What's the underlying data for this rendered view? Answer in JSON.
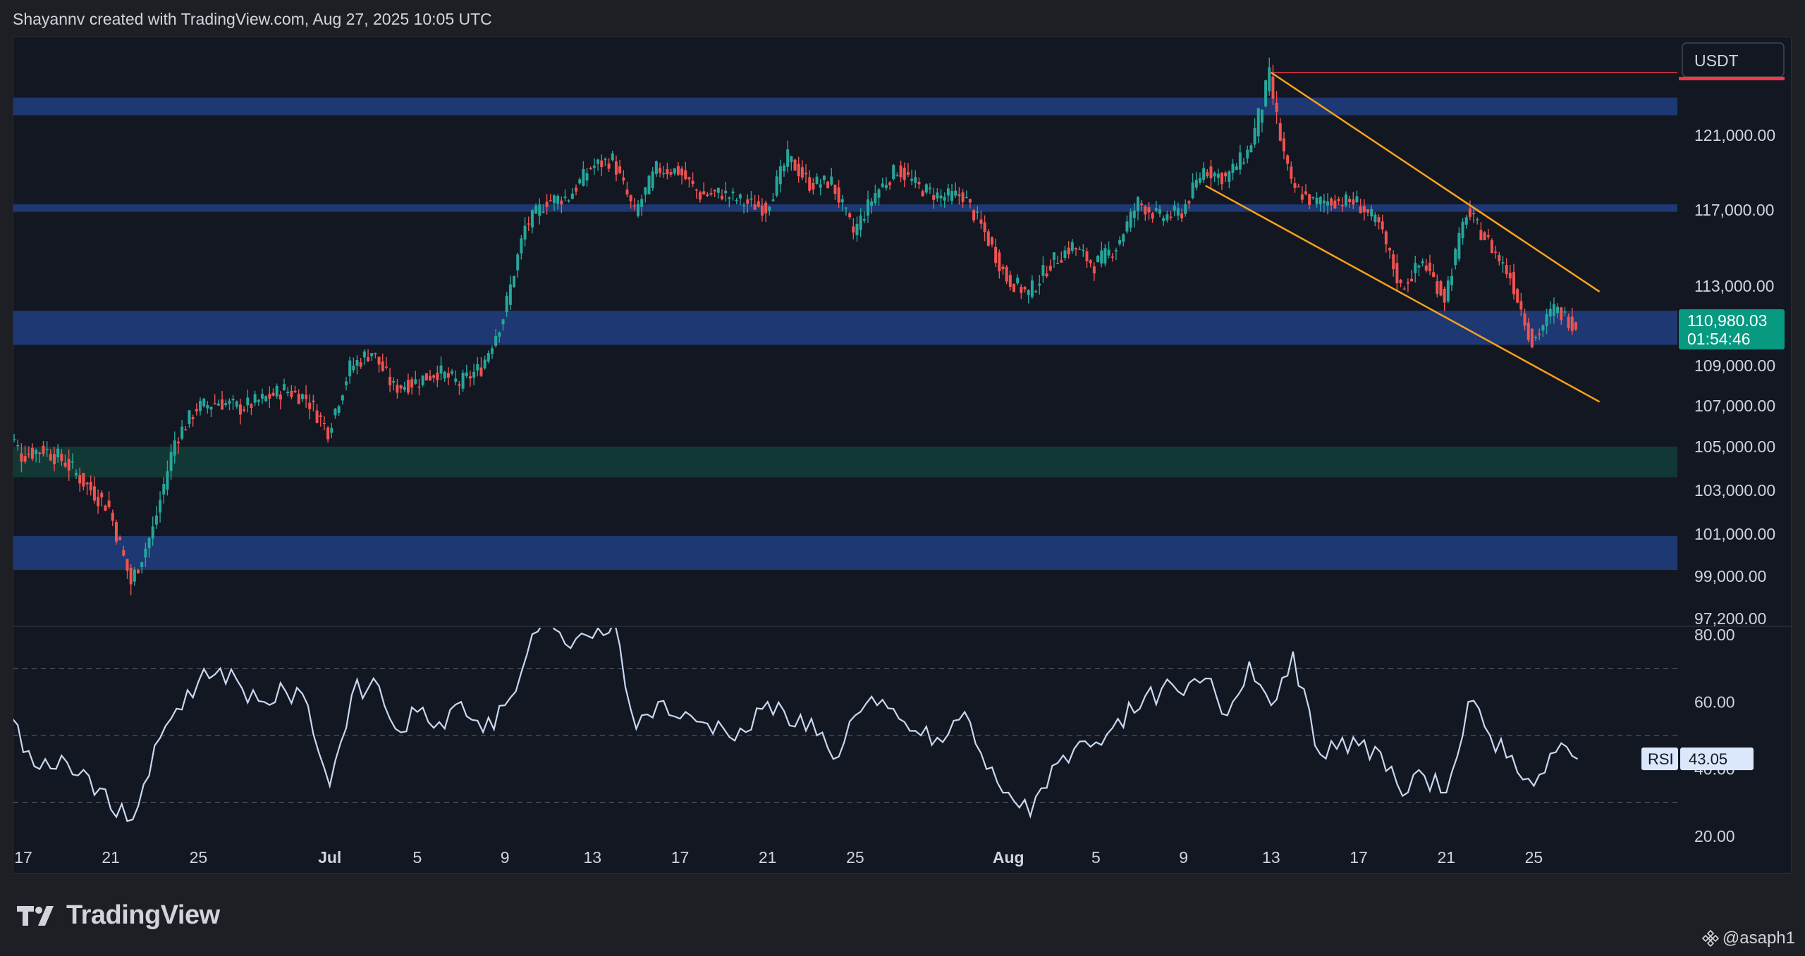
{
  "header": {
    "text": "Shayannv created with TradingView.com, Aug 27, 2025 10:05 UTC"
  },
  "footer": {
    "logo_text": "TradingView",
    "watermark": "@asaph1"
  },
  "colors": {
    "background": "#131722",
    "bull": "#26a69a",
    "bear": "#ef5350",
    "zone_blue": "#1e3a78",
    "zone_green": "#113a36",
    "channel": "#f7a21b",
    "rsi_line": "#c8d8f0",
    "high_line": "#f23645"
  },
  "chart_data": [
    {
      "type": "candlestick",
      "quote_currency": "USDT",
      "y_ticks": [
        121000,
        117000,
        113000,
        109000,
        107000,
        105000,
        103000,
        101000,
        99000,
        97200
      ],
      "y_tick_labels": [
        "121,000.00",
        "117,000.00",
        "113,000.00",
        "109,000.00",
        "107,000.00",
        "105,000.00",
        "103,000.00",
        "101,000.00",
        "99,000.00",
        "97,200.00"
      ],
      "x_tick_labels": [
        "17",
        "21",
        "25",
        "Jul",
        "5",
        "9",
        "13",
        "17",
        "21",
        "25",
        "Aug",
        "5",
        "9",
        "13",
        "17",
        "21",
        "25"
      ],
      "x_ticks": [
        "2025-06-17",
        "2025-06-21",
        "2025-06-25",
        "2025-07-01",
        "2025-07-05",
        "2025-07-09",
        "2025-07-13",
        "2025-07-17",
        "2025-07-21",
        "2025-07-25",
        "2025-08-01",
        "2025-08-05",
        "2025-08-09",
        "2025-08-13",
        "2025-08-17",
        "2025-08-21",
        "2025-08-25"
      ],
      "price_label": {
        "value": "110,980.03",
        "countdown": "01:54:46"
      },
      "path": [
        [
          "2025-06-16",
          106500
        ],
        [
          "2025-06-17",
          104600
        ],
        [
          "2025-06-18",
          104900
        ],
        [
          "2025-06-19",
          104300
        ],
        [
          "2025-06-20",
          103200
        ],
        [
          "2025-06-21",
          102200
        ],
        [
          "2025-06-22",
          98700
        ],
        [
          "2025-06-23",
          101200
        ],
        [
          "2025-06-24",
          105300
        ],
        [
          "2025-06-25",
          106900
        ],
        [
          "2025-06-26",
          107200
        ],
        [
          "2025-06-27",
          106900
        ],
        [
          "2025-06-28",
          107300
        ],
        [
          "2025-06-29",
          107800
        ],
        [
          "2025-06-30",
          107400
        ],
        [
          "2025-07-01",
          105800
        ],
        [
          "2025-07-02",
          108900
        ],
        [
          "2025-07-03",
          109700
        ],
        [
          "2025-07-04",
          107900
        ],
        [
          "2025-07-05",
          108200
        ],
        [
          "2025-07-06",
          108700
        ],
        [
          "2025-07-07",
          108100
        ],
        [
          "2025-07-08",
          108900
        ],
        [
          "2025-07-09",
          111400
        ],
        [
          "2025-07-10",
          116100
        ],
        [
          "2025-07-11",
          117500
        ],
        [
          "2025-07-12",
          117700
        ],
        [
          "2025-07-13",
          119300
        ],
        [
          "2025-07-14",
          119700
        ],
        [
          "2025-07-15",
          116800
        ],
        [
          "2025-07-16",
          119200
        ],
        [
          "2025-07-17",
          119100
        ],
        [
          "2025-07-18",
          117800
        ],
        [
          "2025-07-19",
          117900
        ],
        [
          "2025-07-20",
          117400
        ],
        [
          "2025-07-21",
          117100
        ],
        [
          "2025-07-22",
          119800
        ],
        [
          "2025-07-23",
          118400
        ],
        [
          "2025-07-24",
          118500
        ],
        [
          "2025-07-25",
          115800
        ],
        [
          "2025-07-26",
          117900
        ],
        [
          "2025-07-27",
          119200
        ],
        [
          "2025-07-28",
          118200
        ],
        [
          "2025-07-29",
          117700
        ],
        [
          "2025-07-30",
          117800
        ],
        [
          "2025-07-31",
          115800
        ],
        [
          "2025-08-01",
          113400
        ],
        [
          "2025-08-02",
          112600
        ],
        [
          "2025-08-03",
          114200
        ],
        [
          "2025-08-04",
          115100
        ],
        [
          "2025-08-05",
          114100
        ],
        [
          "2025-08-06",
          115100
        ],
        [
          "2025-08-07",
          117400
        ],
        [
          "2025-08-08",
          116600
        ],
        [
          "2025-08-09",
          116900
        ],
        [
          "2025-08-10",
          119200
        ],
        [
          "2025-08-11",
          118700
        ],
        [
          "2025-08-12",
          120100
        ],
        [
          "2025-08-13",
          123300
        ],
        [
          "2025-08-14",
          118300
        ],
        [
          "2025-08-15",
          117400
        ],
        [
          "2025-08-16",
          117500
        ],
        [
          "2025-08-17",
          117400
        ],
        [
          "2025-08-18",
          116200
        ],
        [
          "2025-08-19",
          112900
        ],
        [
          "2025-08-20",
          114300
        ],
        [
          "2025-08-21",
          112400
        ],
        [
          "2025-08-22",
          116900
        ],
        [
          "2025-08-23",
          115300
        ],
        [
          "2025-08-24",
          113500
        ],
        [
          "2025-08-25",
          110100
        ],
        [
          "2025-08-26",
          111800
        ],
        [
          "2025-08-27",
          110980
        ]
      ],
      "zones": [
        {
          "kind": "resistance",
          "color": "blue",
          "from": 121800,
          "to": 122500
        },
        {
          "kind": "resistance",
          "color": "blue",
          "from": 116900,
          "to": 117300
        },
        {
          "kind": "support",
          "color": "blue",
          "from": 110000,
          "to": 111700
        },
        {
          "kind": "support",
          "color": "green",
          "from": 103600,
          "to": 105000
        },
        {
          "kind": "support",
          "color": "blue",
          "from": 99300,
          "to": 100900
        }
      ],
      "high_line": 123500,
      "channel": {
        "upper": [
          [
            "2025-08-13",
            123500
          ],
          [
            "2025-08-28",
            112700
          ]
        ],
        "lower": [
          [
            "2025-08-10",
            118300
          ],
          [
            "2025-08-28",
            107200
          ]
        ]
      }
    },
    {
      "type": "line",
      "name": "RSI",
      "last_value": "43.05",
      "y_ticks": [
        80,
        60,
        40,
        20
      ],
      "y_tick_labels": [
        "80.00",
        "60.00",
        "40.00",
        "20.00"
      ],
      "levels": [
        70,
        50,
        30
      ],
      "x_range": [
        "2025-06-16",
        "2025-08-27"
      ],
      "values": [
        65,
        45,
        43,
        42,
        38,
        28,
        25,
        47,
        58,
        66,
        70,
        64,
        60,
        63,
        59,
        35,
        62,
        67,
        52,
        57,
        54,
        60,
        51,
        59,
        74,
        85,
        76,
        79,
        84,
        52,
        60,
        55,
        54,
        52,
        51,
        60,
        53,
        55,
        43,
        56,
        59,
        55,
        50,
        48,
        57,
        40,
        33,
        26,
        41,
        46,
        48,
        55,
        58,
        64,
        62,
        67,
        56,
        72,
        59,
        75,
        47,
        46,
        47,
        45,
        32,
        38,
        33,
        60,
        50,
        44,
        35,
        45,
        43
      ]
    }
  ]
}
